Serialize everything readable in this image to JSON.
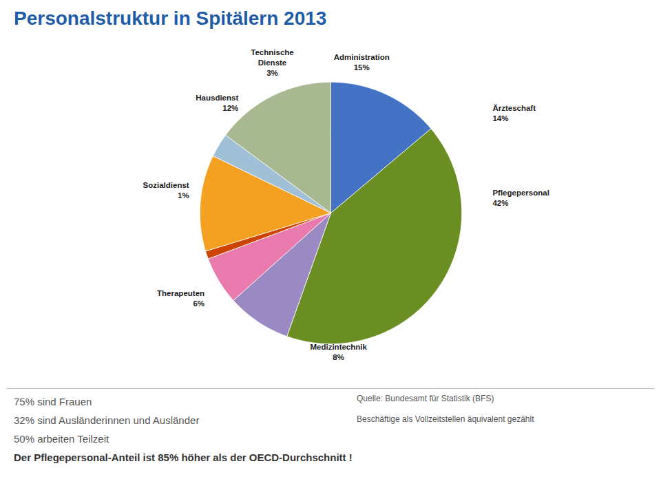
{
  "chart_data": {
    "type": "pie",
    "title": "Personalstruktur in Spitälern 2013",
    "categories": [
      "Ärzteschaft\n14%",
      "Pflegepersonal\n42%",
      "Medizintechnik\n8%",
      "Therapeuten\n6%",
      "Sozialdienst\n1%",
      "Hausdienst\n12%",
      "Technische\nDienste\n3%",
      "Administration\n15%"
    ],
    "values": [
      14,
      42,
      8,
      6,
      1,
      12,
      3,
      15
    ],
    "colors": [
      "#4472C4",
      "#6B8E23",
      "#9B89C4",
      "#E87AAD",
      "#CC4400",
      "#F4A020",
      "#A0C0D8",
      "#A8B890"
    ],
    "annotations": [
      "75% sind Frauen",
      "32% sind Ausländerinnen und Ausländer",
      "50% arbeiten Teilzeit"
    ],
    "annotation_bold": "Der Pflegepersonal-Anteil ist 85% höher als der OECD-Durchschnitt !",
    "source": [
      "Quelle: Bundesamt für Statistik (BFS)",
      "Beschäftige als Vollzeitstellen äquivalent gezählt"
    ]
  }
}
